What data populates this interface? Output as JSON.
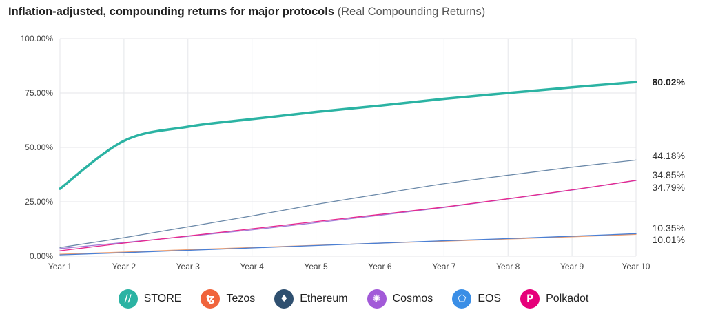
{
  "title": {
    "main": "Inflation-adjusted, compounding returns for major protocols",
    "sub": "(Real Compounding Returns)"
  },
  "chart_data": {
    "type": "line",
    "title": "Inflation-adjusted, compounding returns for major protocols (Real Compounding Returns)",
    "categories": [
      "Year 1",
      "Year 2",
      "Year 3",
      "Year 4",
      "Year 5",
      "Year 6",
      "Year 7",
      "Year 8",
      "Year 9",
      "Year 10"
    ],
    "y_ticks": [
      "0.00%",
      "25.00%",
      "50.00%",
      "75.00%",
      "100.00%"
    ],
    "ylim": [
      0,
      100
    ],
    "grid": true,
    "legend_position": "bottom",
    "series": [
      {
        "name": "STORE",
        "color": "#2bb3a3",
        "values": [
          31,
          53,
          59.5,
          63,
          66.3,
          69.2,
          72.3,
          75,
          77.6,
          80.02
        ],
        "end_label": "80.02%"
      },
      {
        "name": "Ethereum",
        "color": "#6a88a8",
        "values": [
          4,
          8.5,
          13.5,
          18.5,
          23.8,
          28.6,
          33.3,
          37.2,
          40.9,
          44.18
        ],
        "end_label": "44.18%"
      },
      {
        "name": "Polkadot",
        "color": "#e6288f",
        "values": [
          2.5,
          6,
          9.3,
          12.6,
          15.9,
          19.2,
          22.6,
          26.4,
          30.5,
          34.85
        ],
        "end_label": "34.85%"
      },
      {
        "name": "Tezos",
        "color": "#f0a070",
        "values": [
          0.9,
          1.9,
          3,
          4,
          5,
          6,
          6.9,
          7.9,
          8.9,
          10.01
        ],
        "end_label": "10.01%"
      },
      {
        "name": "EOS",
        "color": "#4a7fd4",
        "values": [
          0.6,
          1.6,
          2.7,
          3.8,
          4.9,
          6,
          7.1,
          8.1,
          9.2,
          10.35
        ],
        "end_label": "10.35%"
      },
      {
        "name": "Cosmos",
        "color": "#a37ad6",
        "values": [
          3.5,
          6.3,
          9.1,
          12.1,
          15.4,
          18.8,
          22.4,
          26.3,
          30.4,
          34.79
        ],
        "end_label": "34.79%"
      }
    ]
  },
  "legend": [
    {
      "name": "STORE",
      "icon": "store-icon",
      "color": "#2bb3a3",
      "glyph": "//"
    },
    {
      "name": "Tezos",
      "icon": "tezos-icon",
      "color": "#f0643c",
      "glyph": "ꜩ"
    },
    {
      "name": "Ethereum",
      "icon": "ethereum-icon",
      "color": "#2f5070",
      "glyph": "♦"
    },
    {
      "name": "Cosmos",
      "icon": "cosmos-icon",
      "color": "#a25ad8",
      "glyph": "✺"
    },
    {
      "name": "EOS",
      "icon": "eos-icon",
      "color": "#3a8ee6",
      "glyph": "⬠"
    },
    {
      "name": "Polkadot",
      "icon": "polkadot-icon",
      "color": "#e6007a",
      "glyph": "P"
    }
  ]
}
